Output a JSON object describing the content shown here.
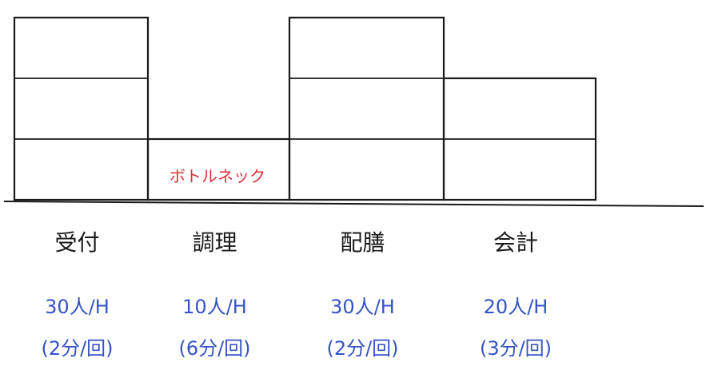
{
  "chart_data": {
    "type": "bar",
    "categories": [
      "受付",
      "調理",
      "配膳",
      "会計"
    ],
    "values": [
      30,
      10,
      30,
      20
    ],
    "value_labels": [
      "30人/H",
      "10人/H",
      "30人/H",
      "20人/H"
    ],
    "cycle_labels": [
      "(2分/回)",
      "(6分/回)",
      "(2分/回)",
      "(3分/回)"
    ],
    "annotation": "ボトルネック",
    "color": "#1a1a1a",
    "label_color": "#3553c8",
    "annotation_color": "#e0303a"
  }
}
